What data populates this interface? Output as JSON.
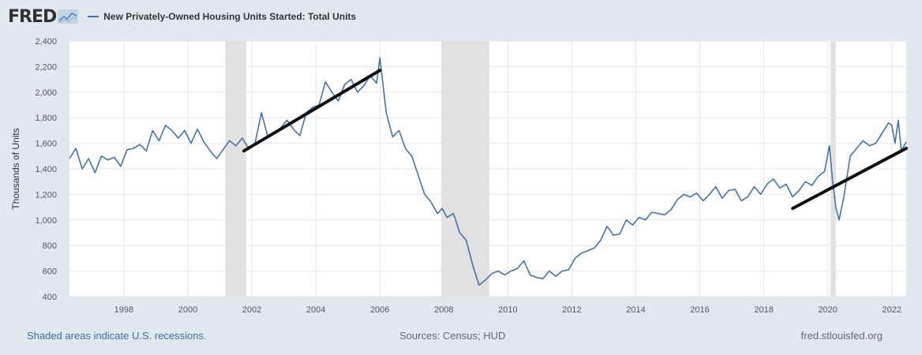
{
  "header": {
    "logo": "FRED",
    "legend_label": "New Privately-Owned Housing Units Started: Total Units"
  },
  "footer": {
    "recession_note": "Shaded areas indicate U.S. recessions.",
    "sources": "Sources: Census; HUD",
    "site": "fred.stlouisfed.org"
  },
  "chart_data": {
    "type": "line",
    "ylabel": "Thousands of Units",
    "ylim": [
      400,
      2400
    ],
    "xlim": [
      1996.3,
      2022.45
    ],
    "yticks": [
      400,
      600,
      800,
      1000,
      1200,
      1400,
      1600,
      1800,
      2000,
      2200,
      2400
    ],
    "ytick_labels": [
      "400",
      "600",
      "800",
      "1,000",
      "1,200",
      "1,400",
      "1,600",
      "1,800",
      "2,000",
      "2,200",
      "2,400"
    ],
    "xticks": [
      1998,
      2000,
      2002,
      2004,
      2006,
      2008,
      2010,
      2012,
      2014,
      2016,
      2018,
      2020,
      2022
    ],
    "xtick_labels": [
      "1998",
      "2000",
      "2002",
      "2004",
      "2006",
      "2008",
      "2010",
      "2012",
      "2014",
      "2016",
      "2018",
      "2020",
      "2022"
    ],
    "grid": true,
    "color": "#4572a7",
    "recessions": [
      [
        2001.17,
        2001.83
      ],
      [
        2007.92,
        2009.42
      ],
      [
        2020.08,
        2020.25
      ]
    ],
    "trend_lines": [
      {
        "x": [
          2001.75,
          2006.0
        ],
        "y": [
          1540,
          2170
        ]
      },
      {
        "x": [
          2018.9,
          2022.45
        ],
        "y": [
          1090,
          1560
        ]
      }
    ],
    "series": [
      {
        "x": [
          1996.3,
          1996.5,
          1996.7,
          1996.9,
          1997.1,
          1997.3,
          1997.5,
          1997.7,
          1997.9,
          1998.1,
          1998.3,
          1998.5,
          1998.7,
          1998.9,
          1999.1,
          1999.3,
          1999.5,
          1999.7,
          1999.9,
          2000.1,
          2000.3,
          2000.5,
          2000.7,
          2000.9,
          2001.1,
          2001.3,
          2001.5,
          2001.7,
          2001.9,
          2002.1,
          2002.3,
          2002.5,
          2002.7,
          2002.9,
          2003.1,
          2003.3,
          2003.5,
          2003.7,
          2003.9,
          2004.1,
          2004.3,
          2004.5,
          2004.7,
          2004.9,
          2005.1,
          2005.3,
          2005.5,
          2005.7,
          2005.9,
          2006.0,
          2006.2,
          2006.4,
          2006.6,
          2006.8,
          2007.0,
          2007.2,
          2007.4,
          2007.6,
          2007.8,
          2007.95,
          2008.1,
          2008.3,
          2008.5,
          2008.7,
          2008.9,
          2009.1,
          2009.3,
          2009.5,
          2009.7,
          2009.9,
          2010.1,
          2010.3,
          2010.5,
          2010.7,
          2010.9,
          2011.1,
          2011.3,
          2011.5,
          2011.7,
          2011.9,
          2012.1,
          2012.3,
          2012.5,
          2012.7,
          2012.9,
          2013.1,
          2013.3,
          2013.5,
          2013.7,
          2013.9,
          2014.1,
          2014.3,
          2014.5,
          2014.7,
          2014.9,
          2015.1,
          2015.3,
          2015.5,
          2015.7,
          2015.9,
          2016.1,
          2016.3,
          2016.5,
          2016.7,
          2016.9,
          2017.1,
          2017.3,
          2017.5,
          2017.7,
          2017.9,
          2018.1,
          2018.3,
          2018.5,
          2018.7,
          2018.9,
          2019.1,
          2019.3,
          2019.5,
          2019.7,
          2019.9,
          2020.05,
          2020.15,
          2020.25,
          2020.35,
          2020.5,
          2020.7,
          2020.9,
          2021.1,
          2021.3,
          2021.5,
          2021.7,
          2021.9,
          2022.0,
          2022.1,
          2022.2,
          2022.3,
          2022.45
        ],
        "y": [
          1480,
          1560,
          1400,
          1480,
          1370,
          1500,
          1470,
          1490,
          1420,
          1550,
          1560,
          1590,
          1540,
          1700,
          1620,
          1740,
          1700,
          1640,
          1700,
          1600,
          1710,
          1610,
          1540,
          1480,
          1550,
          1620,
          1580,
          1640,
          1560,
          1600,
          1840,
          1650,
          1680,
          1720,
          1780,
          1710,
          1660,
          1840,
          1880,
          1900,
          2080,
          2000,
          1930,
          2060,
          2100,
          2000,
          2050,
          2130,
          2070,
          2270,
          1840,
          1650,
          1700,
          1560,
          1500,
          1350,
          1200,
          1140,
          1050,
          1090,
          1020,
          1050,
          900,
          840,
          650,
          490,
          530,
          580,
          600,
          570,
          600,
          620,
          680,
          570,
          550,
          540,
          600,
          560,
          600,
          610,
          700,
          740,
          760,
          780,
          840,
          950,
          880,
          890,
          1000,
          960,
          1020,
          1000,
          1060,
          1050,
          1040,
          1080,
          1160,
          1200,
          1180,
          1210,
          1150,
          1200,
          1260,
          1170,
          1230,
          1240,
          1150,
          1180,
          1260,
          1200,
          1280,
          1320,
          1250,
          1280,
          1180,
          1230,
          1300,
          1270,
          1340,
          1380,
          1580,
          1300,
          1100,
          1000,
          1180,
          1500,
          1560,
          1620,
          1580,
          1600,
          1680,
          1760,
          1740,
          1600,
          1780,
          1540,
          1610
        ]
      }
    ]
  }
}
